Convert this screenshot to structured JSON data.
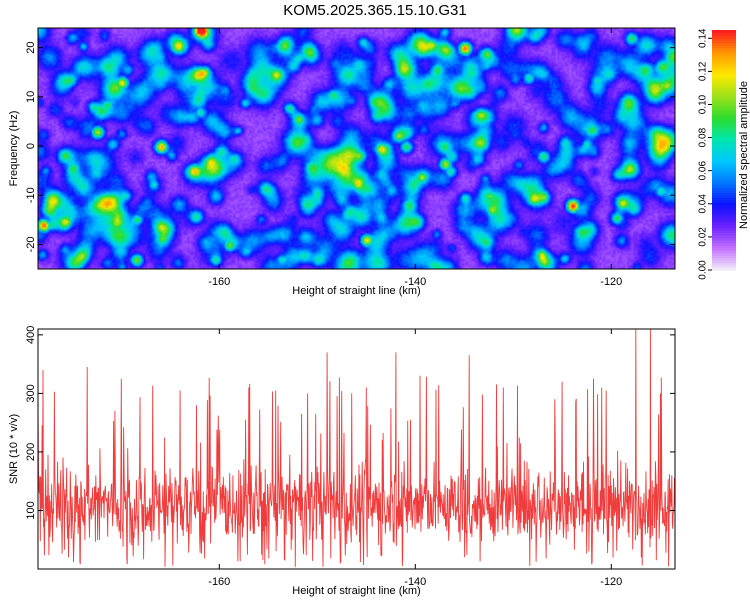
{
  "title": "KOM5.2025.365.15.10.G31",
  "chart_data": [
    {
      "type": "heatmap",
      "name": "spectrogram",
      "xlabel": "Height of straight line (km)",
      "ylabel": "Frequency (Hz)",
      "xlim": [
        -178.5,
        -113.5
      ],
      "ylim": [
        -25,
        24
      ],
      "xticks": [
        -160,
        -140,
        -120
      ],
      "yticks": [
        -20,
        -10,
        0,
        10,
        20
      ],
      "colorbar": {
        "label": "Normalized spectral amplitude",
        "range": [
          0,
          0.145
        ],
        "ticks": [
          "0.00",
          "0.02",
          "0.04",
          "0.06",
          "0.08",
          "0.10",
          "0.12",
          "0.14"
        ],
        "colors": [
          "#f0e8f8",
          "#c26dff",
          "#6a21ff",
          "#0b12ff",
          "#0076ff",
          "#00c8ff",
          "#00e6b0",
          "#2ddd2d",
          "#9ce21a",
          "#ffe900",
          "#ff9a00",
          "#ff1f1f"
        ]
      },
      "hotspots": [
        {
          "x": -178.0,
          "y": -16,
          "v": 0.12
        },
        {
          "x": -172.5,
          "y": 3,
          "v": 0.09
        },
        {
          "x": -171.5,
          "y": 8.5,
          "v": 0.07
        },
        {
          "x": -170.0,
          "y": 13,
          "v": 0.1
        },
        {
          "x": -168.5,
          "y": -23,
          "v": 0.08
        },
        {
          "x": -166.0,
          "y": 0,
          "v": 0.11
        },
        {
          "x": -162.0,
          "y": 7,
          "v": 0.06
        },
        {
          "x": -159.0,
          "y": -20,
          "v": 0.08
        },
        {
          "x": -150.5,
          "y": -5,
          "v": 0.07
        },
        {
          "x": -145.0,
          "y": -19,
          "v": 0.1
        },
        {
          "x": -141.0,
          "y": 0,
          "v": 0.07
        },
        {
          "x": -137.0,
          "y": -3.5,
          "v": 0.09
        },
        {
          "x": -136.5,
          "y": -5,
          "v": 0.06
        },
        {
          "x": -135.0,
          "y": 20,
          "v": 0.12
        },
        {
          "x": -132.5,
          "y": -10,
          "v": 0.08
        },
        {
          "x": -128.5,
          "y": 14,
          "v": 0.06
        },
        {
          "x": -127.0,
          "y": -2,
          "v": 0.07
        },
        {
          "x": -124.0,
          "y": -12,
          "v": 0.13
        },
        {
          "x": -121.5,
          "y": 13.5,
          "v": 0.06
        },
        {
          "x": -119.5,
          "y": -14.5,
          "v": 0.07
        },
        {
          "x": -118.0,
          "y": 22,
          "v": 0.07
        },
        {
          "x": -115.0,
          "y": -9,
          "v": 0.06
        }
      ]
    },
    {
      "type": "line",
      "name": "snr",
      "xlabel": "Height of straight line (km)",
      "ylabel": "SNR (10 * v/v)",
      "xlim": [
        -178.5,
        -113.5
      ],
      "ylim": [
        0,
        410
      ],
      "xticks": [
        -160,
        -140,
        -120
      ],
      "yticks": [
        100,
        200,
        300,
        400
      ],
      "series": [
        {
          "name": "SNR",
          "color": "#f03c3c",
          "mean": 110,
          "spread": 55
        }
      ],
      "peaks": [
        {
          "x": -178.0,
          "y": 340
        },
        {
          "x": -173.5,
          "y": 345
        },
        {
          "x": -170.0,
          "y": 325
        },
        {
          "x": -164.0,
          "y": 305
        },
        {
          "x": -157.0,
          "y": 310
        },
        {
          "x": -151.0,
          "y": 300
        },
        {
          "x": -146.5,
          "y": 300
        },
        {
          "x": -149.0,
          "y": 370
        },
        {
          "x": -145.0,
          "y": 310
        },
        {
          "x": -142.0,
          "y": 370
        },
        {
          "x": -139.5,
          "y": 330
        },
        {
          "x": -134.5,
          "y": 365
        },
        {
          "x": -131.0,
          "y": 310
        },
        {
          "x": -125.0,
          "y": 320
        },
        {
          "x": -121.0,
          "y": 310
        },
        {
          "x": -117.5,
          "y": 410
        },
        {
          "x": -116.0,
          "y": 410
        },
        {
          "x": -115.0,
          "y": 300
        }
      ]
    }
  ]
}
